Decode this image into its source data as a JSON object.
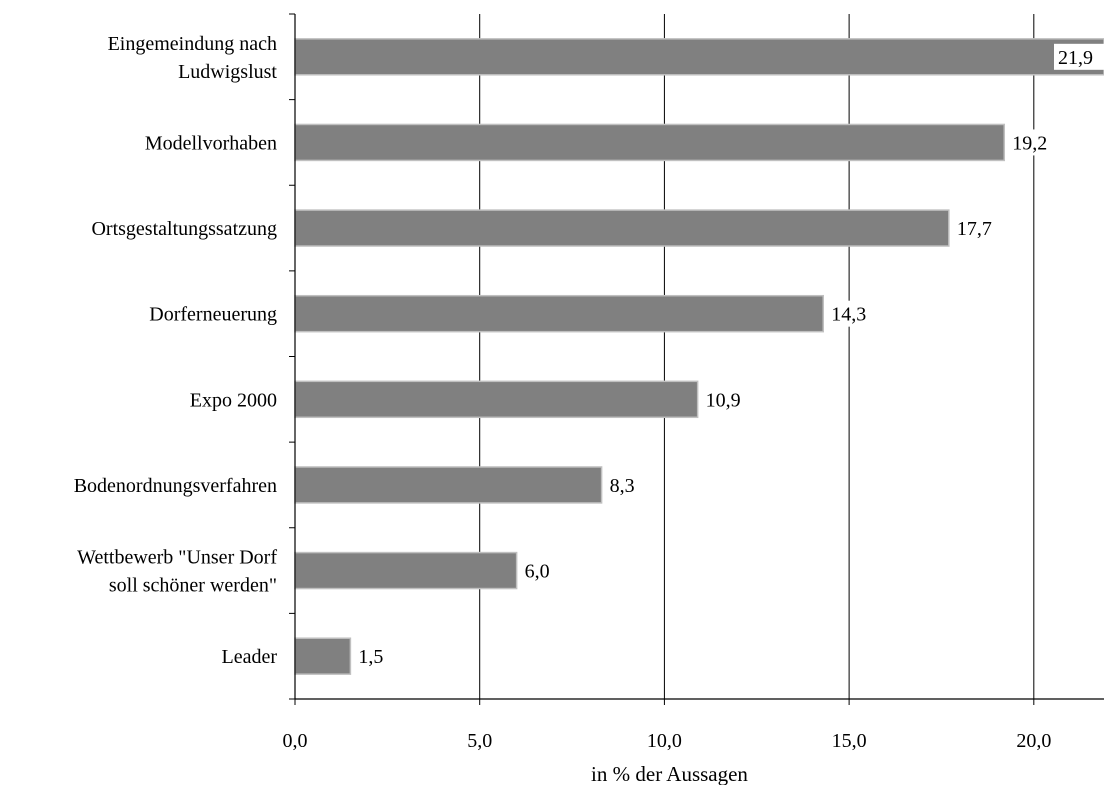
{
  "chart_data": {
    "type": "bar",
    "orientation": "horizontal",
    "categories": [
      [
        "Eingemeindung nach",
        "Ludwigslust"
      ],
      [
        "Modellvorhaben"
      ],
      [
        "Ortsgestaltungssatzung"
      ],
      [
        "Dorferneuerung"
      ],
      [
        "Expo 2000"
      ],
      [
        "Bodenordnungsverfahren"
      ],
      [
        "Wettbewerb \"Unser Dorf",
        "soll schöner werden\""
      ],
      [
        "Leader"
      ]
    ],
    "values": [
      21.9,
      19.2,
      17.7,
      14.3,
      10.9,
      8.3,
      6.0,
      1.5
    ],
    "value_labels": [
      "21,9",
      "19,2",
      "17,7",
      "14,3",
      "10,9",
      "8,3",
      "6,0",
      "1,5"
    ],
    "xlim": [
      0,
      21.9
    ],
    "xticks": [
      0,
      5,
      10,
      15,
      20
    ],
    "xtick_labels": [
      "0,0",
      "5,0",
      "10,0",
      "15,0",
      "20,0"
    ],
    "xlabel": "in % der Aussagen",
    "ylabel": "",
    "grid": "vertical",
    "legend": "none",
    "bar_color": "#808080",
    "bar_edge_color": "#c0c0c0"
  }
}
